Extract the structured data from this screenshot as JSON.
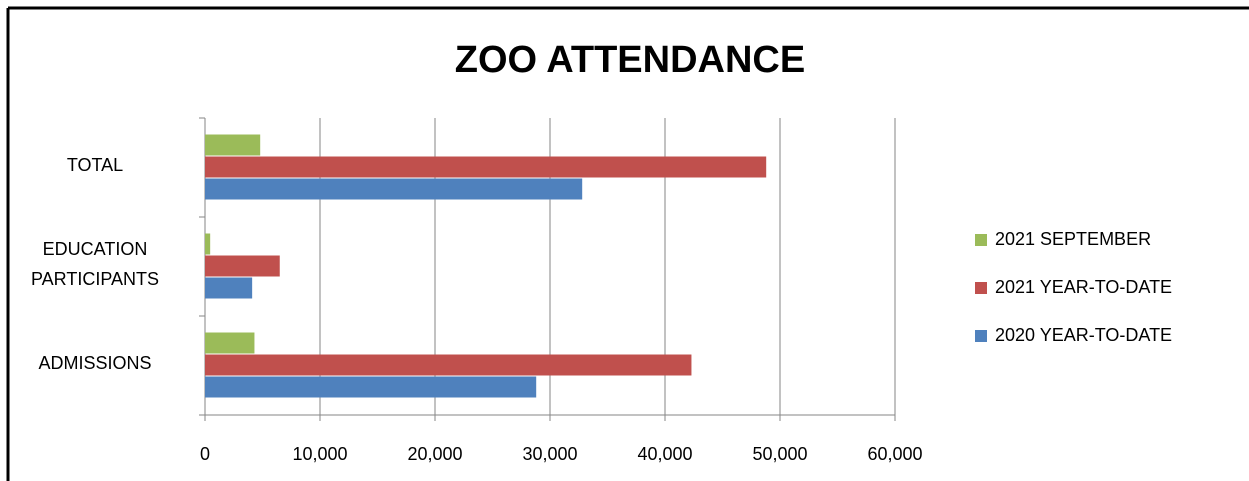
{
  "chart_data": {
    "type": "hbar",
    "title": "ZOO ATTENDANCE",
    "categories": [
      "ADMISSIONS",
      "EDUCATION PARTICIPANTS",
      "TOTAL"
    ],
    "series": [
      {
        "name": "2020 YEAR-TO-DATE",
        "color": "#4f81bd",
        "values": [
          28800,
          4100,
          32800
        ]
      },
      {
        "name": "2021 YEAR-TO-DATE",
        "color": "#c0504d",
        "values": [
          42300,
          6500,
          48800
        ]
      },
      {
        "name": "2021 SEPTEMBER",
        "color": "#9bbb59",
        "values": [
          4300,
          450,
          4800
        ]
      }
    ],
    "xlim": [
      0,
      60000
    ],
    "xticks": [
      0,
      {
        "value": 10000,
        "label": "10,000"
      },
      {
        "value": 20000,
        "label": "20,000"
      },
      {
        "value": 30000,
        "label": "30,000"
      },
      {
        "value": 40000,
        "label": "40,000"
      },
      {
        "value": 50000,
        "label": "50,000"
      },
      {
        "value": 60000,
        "label": "60,000"
      }
    ],
    "grid": true,
    "legend": "right"
  }
}
